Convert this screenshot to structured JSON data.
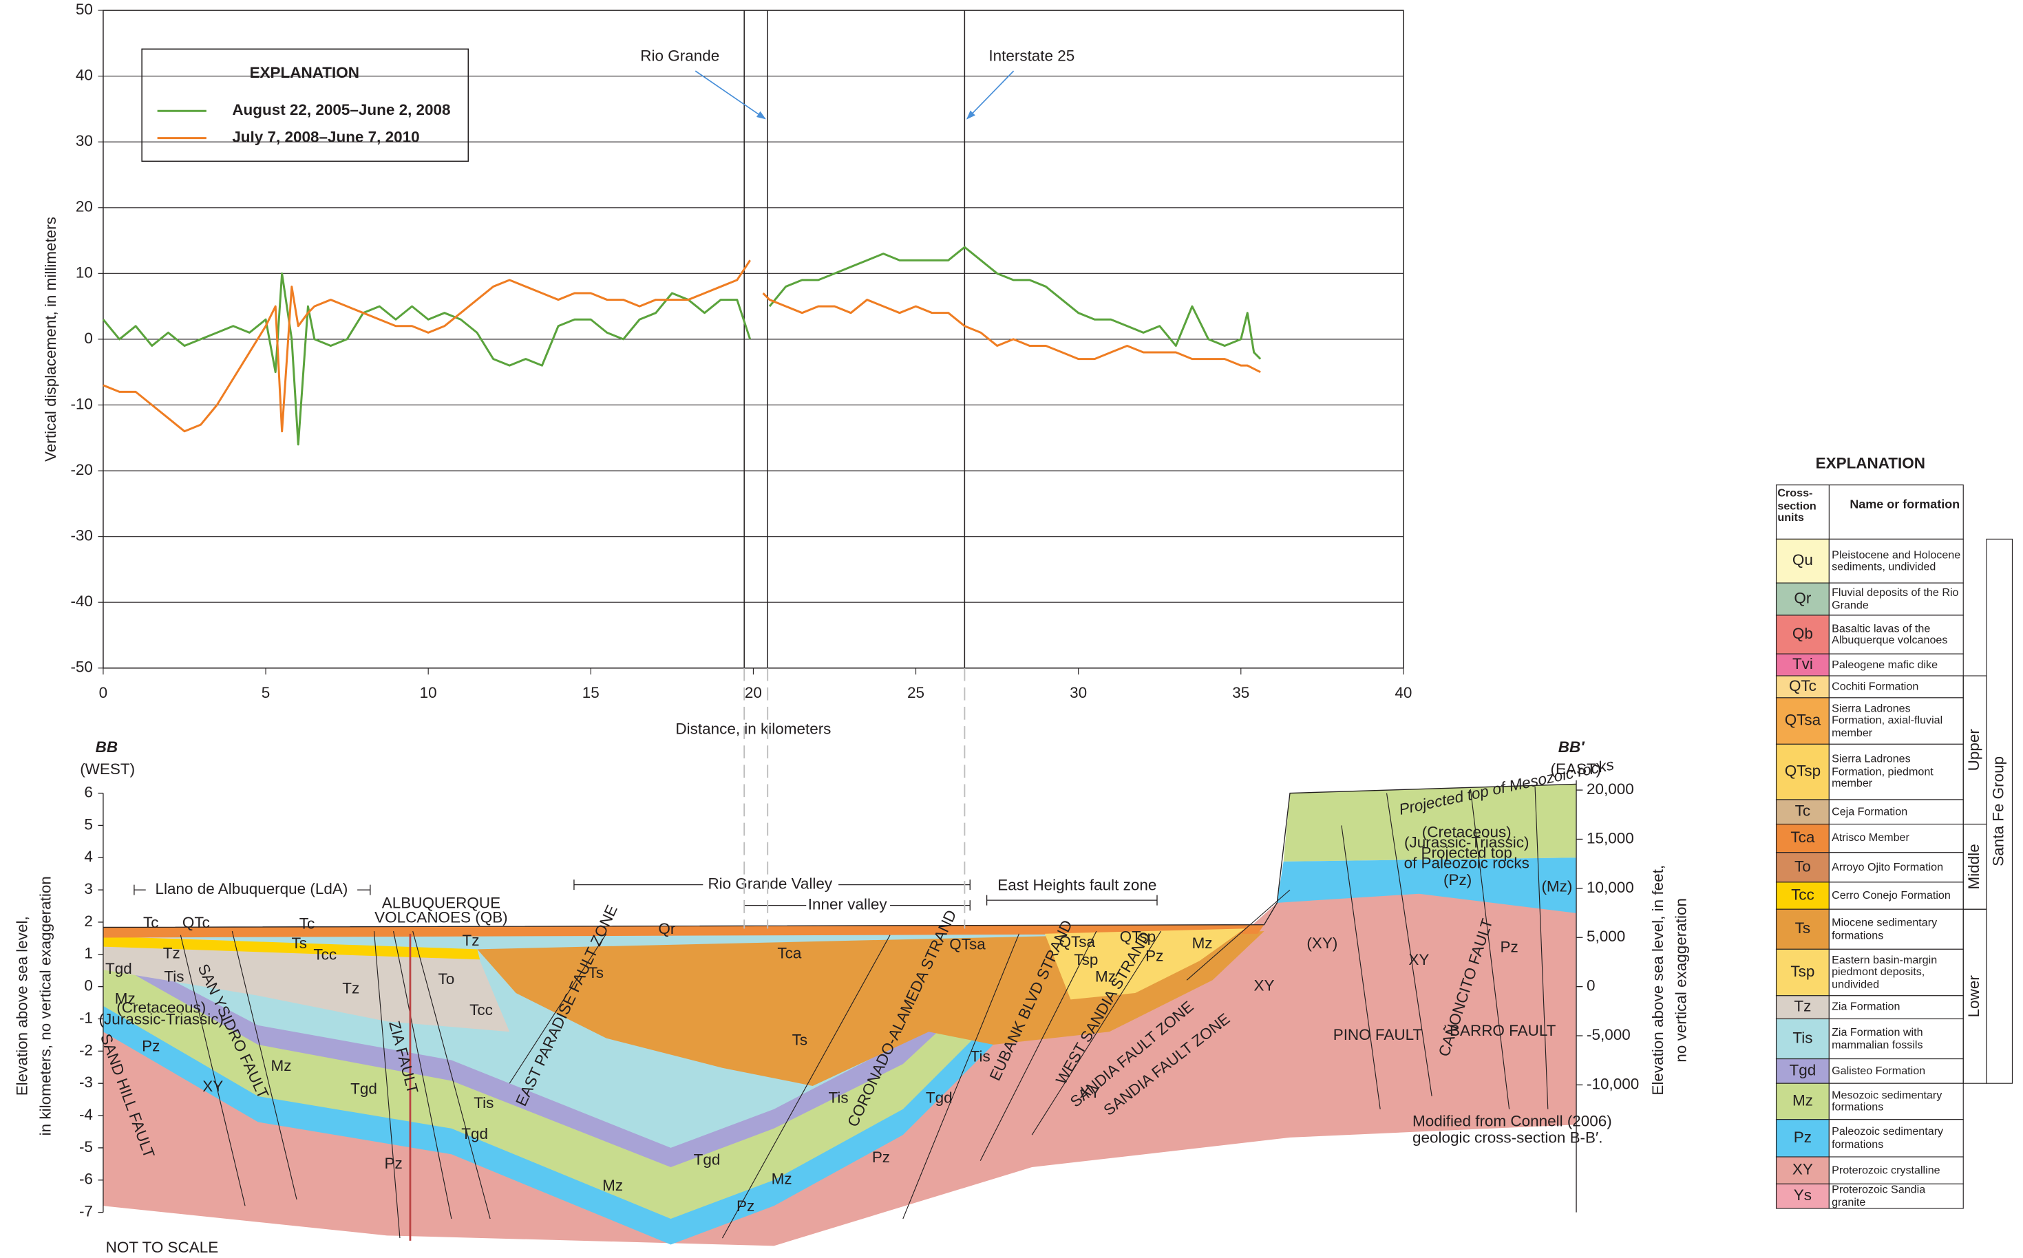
{
  "chart_data": {
    "type": "line",
    "xlabel": "Distance, in kilometers",
    "ylabel": "Vertical displacement, in millimeters",
    "legend_title": "EXPLANATION",
    "legend_position": "upper left",
    "grid": true,
    "xlim": [
      0,
      40
    ],
    "xticks": [
      0,
      5,
      10,
      15,
      20,
      25,
      30,
      35,
      40
    ],
    "ylim": [
      -50,
      50
    ],
    "yticks": [
      -50,
      -40,
      -30,
      -20,
      -10,
      0,
      10,
      20,
      30,
      40,
      50
    ],
    "x": [
      0,
      0.5,
      1,
      1.5,
      2,
      2.5,
      3,
      3.5,
      4,
      4.5,
      5,
      5.3,
      5.5,
      5.8,
      6,
      6.3,
      6.5,
      7,
      7.5,
      8,
      8.5,
      9,
      9.5,
      10,
      10.5,
      11,
      11.5,
      12,
      12.5,
      13,
      13.5,
      14,
      14.5,
      15,
      15.5,
      16,
      16.5,
      17,
      17.5,
      18,
      18.5,
      19,
      19.5,
      19.9,
      20.1,
      20.3,
      20.5,
      21,
      21.5,
      22,
      22.5,
      23,
      23.5,
      24,
      24.5,
      25,
      25.5,
      26,
      26.5,
      27,
      27.5,
      28,
      28.5,
      29,
      29.5,
      30,
      30.5,
      31,
      31.5,
      32,
      32.5,
      33,
      33.5,
      34,
      34.5,
      35,
      35.2,
      35.4,
      35.6
    ],
    "series": [
      {
        "name": "August 22, 2005–June 2, 2008",
        "color": "#5aa33c",
        "values": [
          3,
          0,
          2,
          -1,
          1,
          -1,
          0,
          1,
          2,
          1,
          3,
          -5,
          10,
          0,
          -16,
          5,
          0,
          -1,
          0,
          4,
          5,
          3,
          5,
          3,
          4,
          3,
          1,
          -3,
          -4,
          -3,
          -4,
          2,
          3,
          3,
          1,
          0,
          3,
          4,
          7,
          6,
          4,
          6,
          6,
          0,
          null,
          null,
          5,
          8,
          9,
          9,
          10,
          11,
          12,
          13,
          12,
          12,
          12,
          12,
          14,
          12,
          10,
          9,
          9,
          8,
          6,
          4,
          3,
          3,
          2,
          1,
          2,
          -1,
          5,
          0,
          -1,
          0,
          4,
          -2,
          -3
        ]
      },
      {
        "name": "July 7, 2008–June 7, 2010",
        "color": "#ef7d22",
        "values": [
          -7,
          -8,
          -8,
          -10,
          -12,
          -14,
          -13,
          -10,
          -6,
          -2,
          2,
          5,
          -14,
          8,
          2,
          4,
          5,
          6,
          5,
          4,
          3,
          2,
          2,
          1,
          2,
          4,
          6,
          8,
          9,
          8,
          7,
          6,
          7,
          7,
          6,
          6,
          5,
          6,
          6,
          6,
          7,
          8,
          9,
          12,
          null,
          7,
          6,
          5,
          4,
          5,
          5,
          4,
          6,
          5,
          4,
          5,
          4,
          4,
          2,
          1,
          -1,
          0,
          -1,
          -1,
          -2,
          -3,
          -3,
          -2,
          -1,
          -2,
          -2,
          -2,
          -3,
          -3,
          -3,
          -4,
          -4,
          -4.5,
          -5
        ]
      }
    ],
    "reference_lines": [
      19.72,
      20.44,
      26.5
    ],
    "annotations": [
      {
        "text": "Rio Grande",
        "x": 20.44
      },
      {
        "text": "Interstate 25",
        "x": 26.5
      }
    ]
  },
  "cross_section": {
    "west_label": "BB",
    "west_dir": "(WEST)",
    "east_label": "BB′",
    "east_dir": "(EAST)",
    "ylabel": [
      "Elevation above sea level,",
      "in kilometers, no vertical exaggeration"
    ],
    "y2label": [
      "Elevation above sea level, in feet,",
      "no vertical exaggeration"
    ],
    "ylim": [
      -7,
      6
    ],
    "yticks": [
      6,
      5,
      4,
      3,
      2,
      1,
      0,
      -1,
      -2,
      -3,
      -4,
      -5,
      -6,
      -7
    ],
    "y2lim": [
      -22966,
      19685
    ],
    "y2ticks": [
      {
        "value": 20000,
        "label": "20,000"
      },
      {
        "value": 15000,
        "label": "15,000"
      },
      {
        "value": 10000,
        "label": "10,000"
      },
      {
        "value": 5000,
        "label": "5,000"
      },
      0,
      {
        "value": -5000,
        "label": "-5,000"
      },
      {
        "value": -10000,
        "label": "-10,000"
      }
    ],
    "regions": [
      "Llano de Albuquerque (LdA)",
      "ALBUQUERQUE",
      "VOLCANOES (QB)",
      "Rio Grande Valley",
      "Inner valley",
      "East Heights fault zone"
    ],
    "faults": [
      "SAND HILL FAULT",
      "SAN YSIDRO FAULT",
      "ZIA FAULT",
      "EAST PARADISE FAULT ZONE",
      "CORONADO-ALAMEDA STRAND",
      "EUBANK BLVD STRAND",
      "WEST SANDIA STRAND",
      "SANDIA FAULT ZONE",
      "SANDIA FAULT ZONE",
      "PINO FAULT",
      "CAÑONCITO FAULT",
      "BARRO FAULT"
    ],
    "unit_labels": [
      "Tc",
      "QTc",
      "Tc",
      "Tz",
      "Tgd",
      "Tis",
      "Ts",
      "Tcc",
      "Tz",
      "Tz",
      "To",
      "Tcc",
      "Ts",
      "Mz",
      "(Cretaceous)",
      "(Jurassic-Triassic)",
      "Pz",
      "XY",
      "Mz",
      "Tgd",
      "Tis",
      "Tgd",
      "Pz",
      "Mz",
      "Tis",
      "Tgd",
      "Mz",
      "Pz",
      "Ts",
      "Tis",
      "Tgd",
      "Pz",
      "Qr",
      "Tca",
      "QTsa",
      "XY",
      "QTsa",
      "QTsp",
      "Tsp",
      "Mz",
      "Pz",
      "Mz",
      "XY",
      "(XY)",
      "XY",
      "Pz",
      "(Pz)",
      "(Mz)",
      "(Cretaceous)",
      "(Jurassic-Triassic)",
      "Projected top",
      "of Paleozoic rocks"
    ],
    "projected_note": "Projected top of Mesozoic rocks",
    "source_note": [
      "Modified from Connell (2006)",
      "geologic cross-section B-B′."
    ],
    "scale_note": "NOT TO SCALE"
  },
  "explanation": {
    "title": "EXPLANATION",
    "headers": [
      "Cross-section units",
      "Name or formation"
    ],
    "rows": [
      {
        "code": "Qu",
        "name": "Pleistocene and Holocene sediments, undivided",
        "color": "#fdf7c3"
      },
      {
        "code": "Qr",
        "name": "Fluvial deposits of the Rio Grande",
        "color": "#a9c9b0"
      },
      {
        "code": "Qb",
        "name": "Basaltic lavas of the Albuquerque volcanoes",
        "color": "#ef7f7a"
      },
      {
        "code": "Tvi",
        "name": "Paleogene mafic dike",
        "color": "#ee73a0"
      },
      {
        "code": "QTc",
        "name": "Cochiti Formation",
        "color": "#fbd98c"
      },
      {
        "code": "QTsa",
        "name": "Sierra Ladrones Formation, axial-fluvial member",
        "color": "#f4a94a"
      },
      {
        "code": "QTsp",
        "name": "Sierra Ladrones Formation, piedmont member",
        "color": "#fbd462"
      },
      {
        "code": "Tc",
        "name": "Ceja Formation",
        "color": "#d5b48a"
      },
      {
        "code": "Tca",
        "name": "Atrisco Member",
        "color": "#ef8a3a"
      },
      {
        "code": "To",
        "name": "Arroyo Ojito Formation",
        "color": "#d58a5a"
      },
      {
        "code": "Tcc",
        "name": "Cerro Conejo Formation",
        "color": "#fdd200"
      },
      {
        "code": "Ts",
        "name": "Miocene sedimentary formations",
        "color": "#e59b3e"
      },
      {
        "code": "Tsp",
        "name": "Eastern basin-margin piedmont deposits, undivided",
        "color": "#fbd96b"
      },
      {
        "code": "Tz",
        "name": "Zia Formation",
        "color": "#d9d0c7"
      },
      {
        "code": "Tis",
        "name": "Zia Formation with mammalian fossils",
        "color": "#acdde3"
      },
      {
        "code": "Tgd",
        "name": "Galisteo Formation",
        "color": "#a8a3d6"
      },
      {
        "code": "Mz",
        "name": "Mesozoic sedimentary formations",
        "color": "#c8dc8e"
      },
      {
        "code": "Pz",
        "name": "Paleozoic sedimentary formations",
        "color": "#5bc8f2"
      },
      {
        "code": "XY",
        "name": "Proterozoic crystalline",
        "color": "#e8a49e"
      },
      {
        "code": "Ys",
        "name": "Proterozoic Sandia granite",
        "color": "#f2a4b0"
      }
    ],
    "groups": [
      "Upper",
      "Middle",
      "Lower",
      "Santa Fe Group"
    ]
  }
}
